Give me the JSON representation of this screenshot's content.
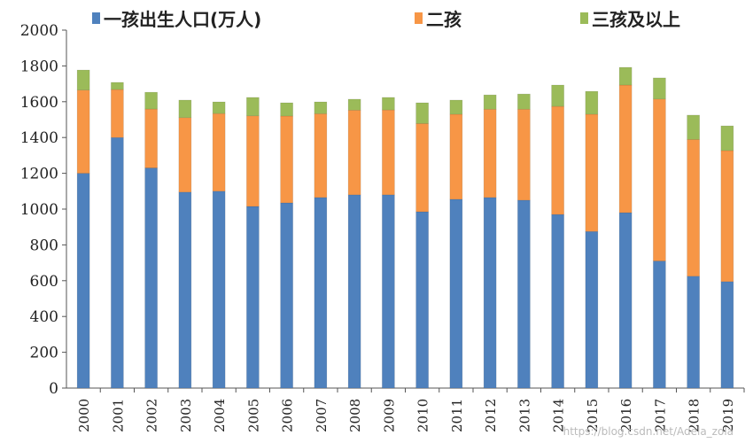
{
  "chart_data": {
    "type": "bar",
    "stacked": true,
    "title": "",
    "xlabel": "",
    "ylabel": "",
    "ylim": [
      0,
      2000
    ],
    "yticks": [
      0,
      200,
      400,
      600,
      800,
      1000,
      1200,
      1400,
      1600,
      1800,
      2000
    ],
    "grid": false,
    "legend": "top",
    "categories": [
      "2000",
      "2001",
      "2002",
      "2003",
      "2004",
      "2005",
      "2006",
      "2007",
      "2008",
      "2009",
      "2010",
      "2011",
      "2012",
      "2013",
      "2014",
      "2015",
      "2016",
      "2017",
      "2018",
      "2019"
    ],
    "series": [
      {
        "name": "一孩出生人口(万人)",
        "color": "#4f81bd",
        "values": [
          1200,
          1400,
          1230,
          1095,
          1100,
          1015,
          1035,
          1065,
          1080,
          1080,
          985,
          1055,
          1065,
          1050,
          970,
          875,
          980,
          710,
          625,
          595
        ]
      },
      {
        "name": "二孩",
        "color": "#f79646",
        "values": [
          465,
          268,
          329,
          416,
          434,
          506,
          485,
          468,
          473,
          474,
          493,
          475,
          493,
          508,
          604,
          655,
          713,
          905,
          764,
          732
        ]
      },
      {
        "name": "三孩及以上",
        "color": "#9bbb59",
        "values": [
          112,
          40,
          94,
          98,
          65,
          103,
          74,
          66,
          61,
          70,
          116,
          79,
          80,
          85,
          119,
          128,
          99,
          118,
          136,
          138
        ]
      }
    ]
  },
  "watermark": "https://blog.csdn.net/Adela_zola"
}
